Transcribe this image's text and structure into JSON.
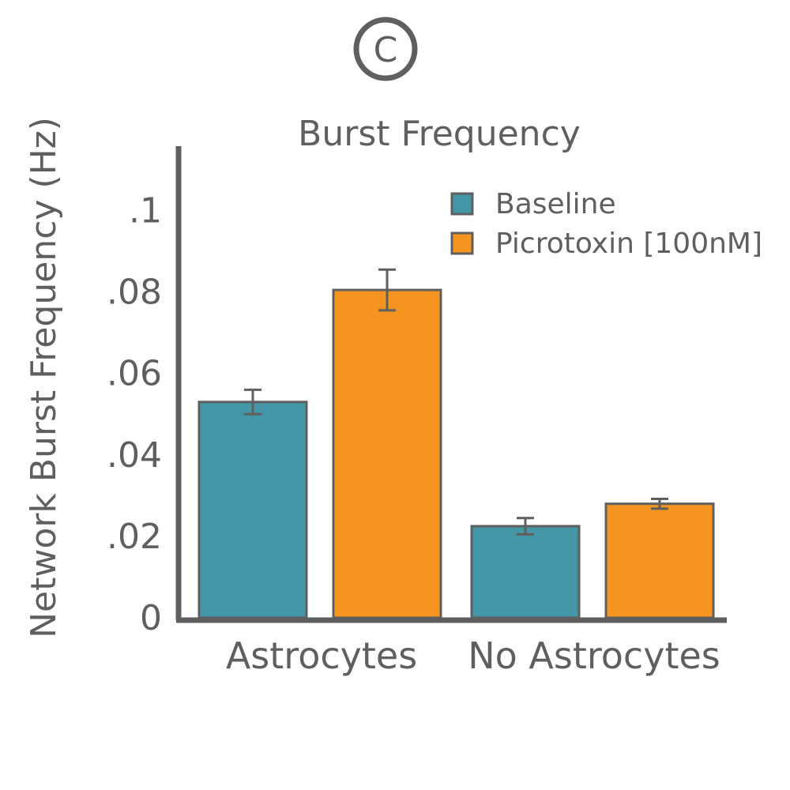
{
  "panel_label": "C",
  "chart_data": {
    "type": "bar",
    "title": "Burst Frequency",
    "xlabel": "",
    "ylabel": "Network Burst Frequency (Hz)",
    "categories": [
      "Astrocytes",
      "No Astrocytes"
    ],
    "series": [
      {
        "name": "Baseline",
        "color": "#4496a6",
        "values": [
          0.053,
          0.0225
        ],
        "errors": [
          0.003,
          0.002
        ]
      },
      {
        "name": "Picrotoxin [100nM]",
        "color": "#f5951f",
        "values": [
          0.0805,
          0.028
        ],
        "errors": [
          0.005,
          0.0012
        ]
      }
    ],
    "ylim": [
      0,
      0.11
    ],
    "yticks": [
      0,
      0.02,
      0.04,
      0.06,
      0.08,
      0.1
    ],
    "ytick_labels": [
      "0",
      ".02",
      ".04",
      ".06",
      ".08",
      ".1"
    ],
    "grid": false,
    "legend_position": "top-right",
    "axis_color": "#5f5f5f"
  }
}
